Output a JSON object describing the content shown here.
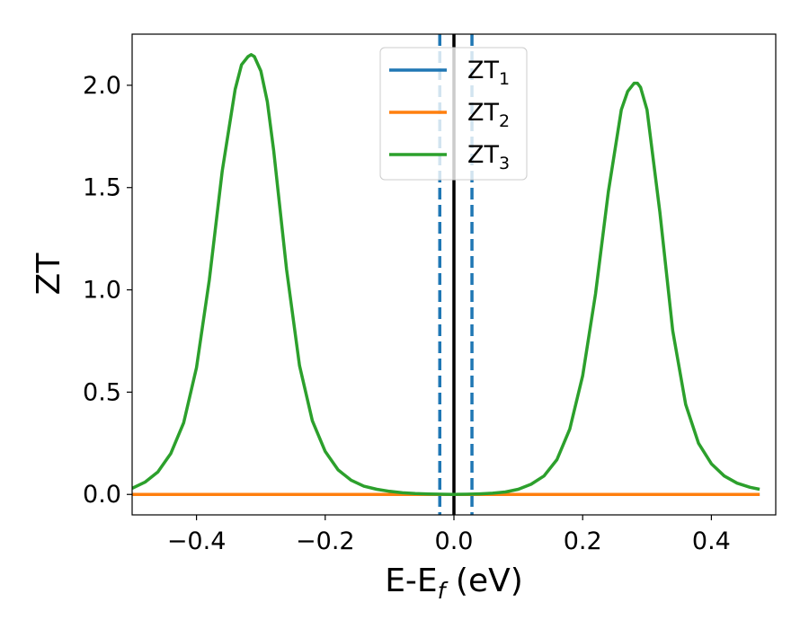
{
  "chart_data": {
    "type": "line",
    "title": "",
    "xlabel": {
      "main": "E-E",
      "sub": "f",
      "tail": " (eV)"
    },
    "ylabel": "ZT",
    "xlim": [
      -0.5,
      0.5
    ],
    "ylim": [
      -0.1,
      2.25
    ],
    "xticks": [
      -0.4,
      -0.2,
      0.0,
      0.2,
      0.4
    ],
    "xtick_labels": [
      "−0.4",
      "−0.2",
      "0.0",
      "0.2",
      "0.4"
    ],
    "yticks": [
      0.0,
      0.5,
      1.0,
      1.5,
      2.0
    ],
    "ytick_labels": [
      "0.0",
      "0.5",
      "1.0",
      "1.5",
      "2.0"
    ],
    "grid": false,
    "legend_position": "top-center",
    "vlines": [
      {
        "x": 0.0,
        "color": "#000000",
        "style": "solid"
      },
      {
        "x": -0.022,
        "color": "#1f77b4",
        "style": "dashed"
      },
      {
        "x": 0.028,
        "color": "#1f77b4",
        "style": "dashed"
      }
    ],
    "series": [
      {
        "name": {
          "main": "ZT",
          "sub": "1"
        },
        "color": "#1f77b4",
        "x": [
          -0.5,
          0.475
        ],
        "y": [
          0.0,
          0.0
        ]
      },
      {
        "name": {
          "main": "ZT",
          "sub": "2"
        },
        "color": "#ff7f0e",
        "x": [
          -0.5,
          0.475
        ],
        "y": [
          0.0,
          0.0
        ]
      },
      {
        "name": {
          "main": "ZT",
          "sub": "3"
        },
        "color": "#2ca02c",
        "x": [
          -0.5,
          -0.48,
          -0.46,
          -0.44,
          -0.42,
          -0.4,
          -0.38,
          -0.36,
          -0.34,
          -0.33,
          -0.32,
          -0.315,
          -0.31,
          -0.3,
          -0.29,
          -0.28,
          -0.26,
          -0.24,
          -0.22,
          -0.2,
          -0.18,
          -0.16,
          -0.14,
          -0.12,
          -0.1,
          -0.08,
          -0.06,
          -0.04,
          -0.02,
          0.0,
          0.02,
          0.04,
          0.06,
          0.08,
          0.1,
          0.12,
          0.14,
          0.16,
          0.18,
          0.2,
          0.22,
          0.24,
          0.26,
          0.27,
          0.28,
          0.285,
          0.29,
          0.3,
          0.32,
          0.34,
          0.36,
          0.38,
          0.4,
          0.42,
          0.44,
          0.46,
          0.475
        ],
        "y": [
          0.03,
          0.06,
          0.11,
          0.2,
          0.35,
          0.62,
          1.05,
          1.58,
          1.98,
          2.1,
          2.14,
          2.15,
          2.14,
          2.07,
          1.92,
          1.68,
          1.1,
          0.63,
          0.36,
          0.21,
          0.12,
          0.07,
          0.04,
          0.025,
          0.015,
          0.008,
          0.004,
          0.002,
          0.001,
          0.0,
          0.001,
          0.003,
          0.006,
          0.012,
          0.025,
          0.05,
          0.09,
          0.17,
          0.32,
          0.58,
          0.98,
          1.48,
          1.88,
          1.97,
          2.01,
          2.01,
          1.99,
          1.88,
          1.38,
          0.8,
          0.44,
          0.25,
          0.15,
          0.09,
          0.055,
          0.035,
          0.025
        ]
      }
    ]
  }
}
